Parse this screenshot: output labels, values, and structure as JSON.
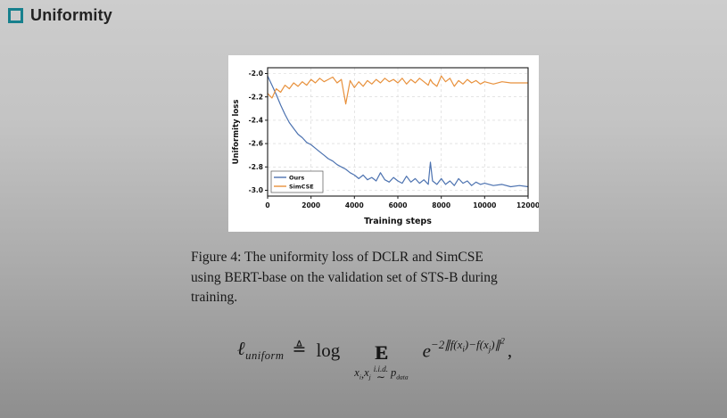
{
  "slide": {
    "title": "Uniformity"
  },
  "colors": {
    "bullet_accent": "#17808d",
    "ours_line": "#4c72b0",
    "simcse_line": "#e8913c",
    "background_top": "#cdcdcd",
    "background_bottom": "#8e8e8e"
  },
  "figure": {
    "caption_lines": [
      "Figure 4: The uniformity loss of DCLR and SimCSE",
      "using BERT-base on the validation set of STS-B during",
      "training."
    ]
  },
  "formula": {
    "ell": "ℓ",
    "ell_sub": "uniform",
    "defeq": "≜",
    "log_label": "log",
    "expectation": "E",
    "x1": "x",
    "x1_idx": "i",
    "comma_sep": ",",
    "x2": "x",
    "x2_idx": "j",
    "iid": "i.i.d.",
    "tilde": "∼",
    "p_symbol": "p",
    "p_sub": "data",
    "e_base": "e",
    "exp_prefix": "−2∥f(x",
    "exp_i": "i",
    "exp_mid": ")−f(x",
    "exp_j": "j",
    "exp_suffix": ")∥",
    "exp_power": "2",
    "trailing_comma": ","
  },
  "chart_data": {
    "type": "line",
    "title": "",
    "xlabel": "Training steps",
    "ylabel": "Uniformity loss",
    "xlim": [
      0,
      12000
    ],
    "ylim": [
      -3.05,
      -1.95
    ],
    "xticks": [
      0,
      2000,
      4000,
      6000,
      8000,
      10000,
      12000
    ],
    "yticks": [
      -2.0,
      -2.2,
      -2.4,
      -2.6,
      -2.8,
      -3.0
    ],
    "grid": true,
    "legend_position": "lower left",
    "series": [
      {
        "name": "Ours",
        "color": "#4c72b0",
        "x": [
          0,
          200,
          400,
          600,
          800,
          1000,
          1200,
          1400,
          1600,
          1800,
          2000,
          2200,
          2400,
          2600,
          2800,
          3000,
          3200,
          3400,
          3600,
          3800,
          4000,
          4200,
          4400,
          4600,
          4800,
          5000,
          5200,
          5400,
          5600,
          5800,
          6000,
          6200,
          6400,
          6600,
          6800,
          7000,
          7200,
          7400,
          7500,
          7600,
          7800,
          8000,
          8200,
          8400,
          8600,
          8800,
          9000,
          9200,
          9400,
          9600,
          9800,
          10000,
          10400,
          10800,
          11200,
          11600,
          12000
        ],
        "y": [
          -2.02,
          -2.1,
          -2.18,
          -2.27,
          -2.35,
          -2.42,
          -2.47,
          -2.52,
          -2.55,
          -2.59,
          -2.61,
          -2.64,
          -2.67,
          -2.7,
          -2.73,
          -2.75,
          -2.78,
          -2.8,
          -2.82,
          -2.85,
          -2.87,
          -2.9,
          -2.87,
          -2.91,
          -2.89,
          -2.92,
          -2.85,
          -2.91,
          -2.93,
          -2.89,
          -2.92,
          -2.94,
          -2.88,
          -2.93,
          -2.9,
          -2.94,
          -2.91,
          -2.95,
          -2.76,
          -2.92,
          -2.95,
          -2.9,
          -2.95,
          -2.92,
          -2.96,
          -2.9,
          -2.94,
          -2.92,
          -2.96,
          -2.93,
          -2.95,
          -2.94,
          -2.96,
          -2.95,
          -2.97,
          -2.96,
          -2.97
        ]
      },
      {
        "name": "SimCSE",
        "color": "#e8913c",
        "x": [
          0,
          200,
          400,
          600,
          800,
          1000,
          1200,
          1400,
          1600,
          1800,
          2000,
          2200,
          2400,
          2600,
          2800,
          3000,
          3200,
          3400,
          3600,
          3800,
          4000,
          4200,
          4400,
          4600,
          4800,
          5000,
          5200,
          5400,
          5600,
          5800,
          6000,
          6200,
          6400,
          6600,
          6800,
          7000,
          7200,
          7400,
          7500,
          7600,
          7800,
          8000,
          8200,
          8400,
          8600,
          8800,
          9000,
          9200,
          9400,
          9600,
          9800,
          10000,
          10400,
          10800,
          11200,
          11600,
          12000
        ],
        "y": [
          -2.17,
          -2.21,
          -2.13,
          -2.16,
          -2.1,
          -2.13,
          -2.08,
          -2.11,
          -2.07,
          -2.1,
          -2.05,
          -2.08,
          -2.04,
          -2.07,
          -2.05,
          -2.03,
          -2.08,
          -2.05,
          -2.26,
          -2.06,
          -2.12,
          -2.07,
          -2.11,
          -2.06,
          -2.09,
          -2.05,
          -2.08,
          -2.04,
          -2.07,
          -2.05,
          -2.08,
          -2.04,
          -2.09,
          -2.05,
          -2.08,
          -2.04,
          -2.07,
          -2.1,
          -2.05,
          -2.08,
          -2.11,
          -2.02,
          -2.07,
          -2.04,
          -2.11,
          -2.06,
          -2.09,
          -2.05,
          -2.08,
          -2.06,
          -2.09,
          -2.07,
          -2.09,
          -2.07,
          -2.08,
          -2.08,
          -2.08
        ]
      }
    ]
  }
}
